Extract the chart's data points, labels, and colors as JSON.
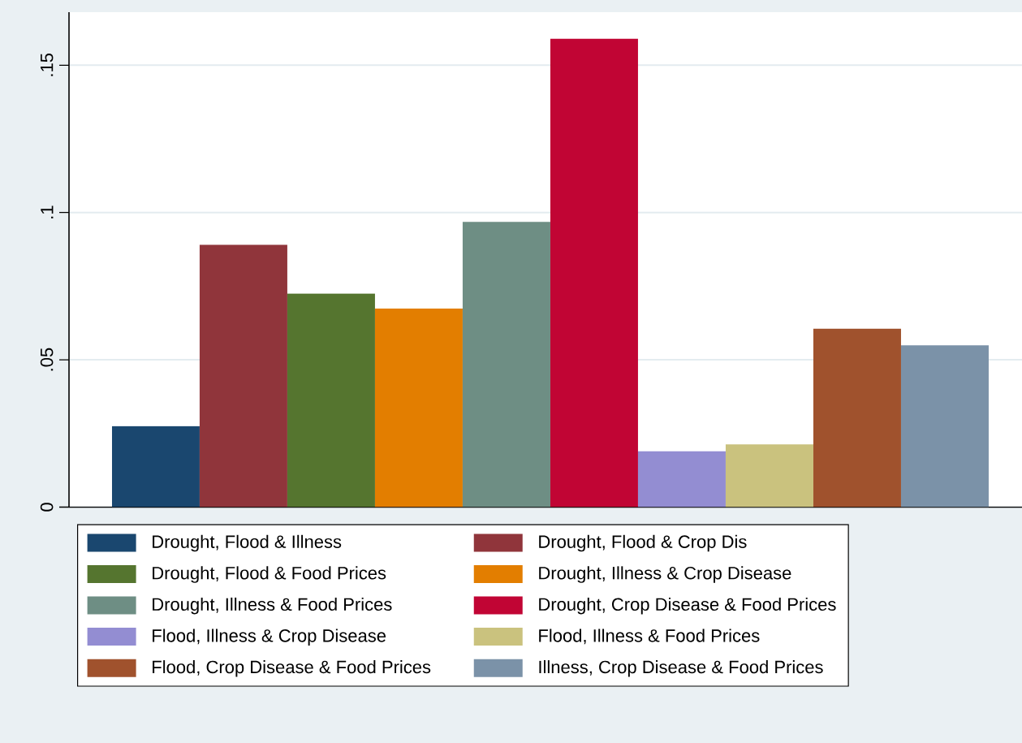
{
  "chart_data": {
    "type": "bar",
    "categories": [
      null
    ],
    "series": [
      {
        "name": "Drought, Flood & Illness",
        "color": "#1a476f",
        "values": [
          0.0275
        ]
      },
      {
        "name": "Drought, Flood & Crop Dis",
        "color": "#90353b",
        "values": [
          0.089
        ]
      },
      {
        "name": "Drought, Flood & Food Prices",
        "color": "#55752f",
        "values": [
          0.0725
        ]
      },
      {
        "name": "Drought, Illness & Crop Disease",
        "color": "#e37e00",
        "values": [
          0.0674
        ]
      },
      {
        "name": "Drought, Illness & Food Prices",
        "color": "#6e8e84",
        "values": [
          0.0968
        ]
      },
      {
        "name": "Drought, Crop Disease & Food Prices",
        "color": "#c10534",
        "values": [
          0.159
        ]
      },
      {
        "name": "Flood, Illness & Crop Disease",
        "color": "#938dd2",
        "values": [
          0.019
        ]
      },
      {
        "name": "Flood, Illness & Food Prices",
        "color": "#cac27e",
        "values": [
          0.0213
        ]
      },
      {
        "name": "Flood, Crop Disease & Food Prices",
        "color": "#a0522d",
        "values": [
          0.0606
        ]
      },
      {
        "name": "Illness, Crop Disease & Food Prices",
        "color": "#7b92a8",
        "values": [
          0.0549
        ]
      }
    ],
    "ylim": [
      0,
      0.168
    ],
    "yticks": [
      0,
      {
        "value": 0.05,
        "label": ".05"
      },
      {
        "value": 0.1,
        "label": ".1"
      },
      {
        "value": 0.15,
        "label": ".15"
      }
    ],
    "grid": "y",
    "legend": "bottom"
  }
}
